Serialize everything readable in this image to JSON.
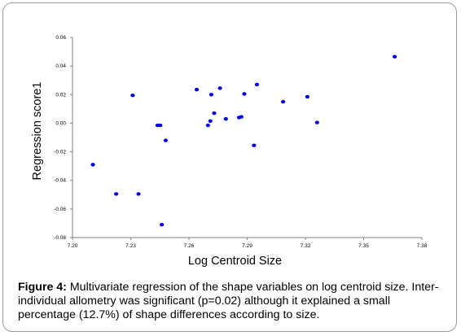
{
  "chart_data": {
    "type": "scatter",
    "xlabel": "Log Centroid Size",
    "ylabel": "Regression score1",
    "xlim": [
      7.2,
      7.38
    ],
    "ylim": [
      -0.08,
      0.06
    ],
    "x_ticks": [
      "7.20",
      "7.23",
      "7.26",
      "7.29",
      "7.32",
      "7.35",
      "7.38"
    ],
    "y_ticks": [
      "-0.08",
      "-0.06",
      "-0.04",
      "-0.02",
      "0.00",
      "0.02",
      "0.04",
      "0.06"
    ],
    "x_tick_values": [
      7.2,
      7.23,
      7.26,
      7.29,
      7.32,
      7.35,
      7.38
    ],
    "y_tick_values": [
      -0.08,
      -0.06,
      -0.04,
      -0.02,
      0.0,
      0.02,
      0.04,
      0.06
    ],
    "grid": false,
    "marker_color": "#0000ee",
    "points": [
      {
        "x": 7.2105,
        "y": -0.029
      },
      {
        "x": 7.2225,
        "y": -0.0495
      },
      {
        "x": 7.231,
        "y": 0.0195
      },
      {
        "x": 7.234,
        "y": -0.0495
      },
      {
        "x": 7.2438,
        "y": -0.0015
      },
      {
        "x": 7.2452,
        "y": -0.0015
      },
      {
        "x": 7.246,
        "y": -0.071
      },
      {
        "x": 7.248,
        "y": -0.012
      },
      {
        "x": 7.264,
        "y": 0.0235
      },
      {
        "x": 7.2698,
        "y": -0.0015
      },
      {
        "x": 7.271,
        "y": 0.0015
      },
      {
        "x": 7.2715,
        "y": 0.02
      },
      {
        "x": 7.273,
        "y": 0.007
      },
      {
        "x": 7.276,
        "y": 0.0245
      },
      {
        "x": 7.279,
        "y": 0.003
      },
      {
        "x": 7.2858,
        "y": 0.004
      },
      {
        "x": 7.287,
        "y": 0.0045
      },
      {
        "x": 7.2885,
        "y": 0.0205
      },
      {
        "x": 7.2935,
        "y": -0.0155
      },
      {
        "x": 7.295,
        "y": 0.027
      },
      {
        "x": 7.3085,
        "y": 0.015
      },
      {
        "x": 7.321,
        "y": 0.0185
      },
      {
        "x": 7.326,
        "y": 0.0005
      },
      {
        "x": 7.366,
        "y": 0.0465
      }
    ]
  },
  "caption": {
    "label": "Figure 4:",
    "text": " Multivariate regression of the shape variables on log centroid size. Inter-individual allometry was significant (p=0.02) although it explained a small percentage (12.7%) of shape differences according to size."
  }
}
